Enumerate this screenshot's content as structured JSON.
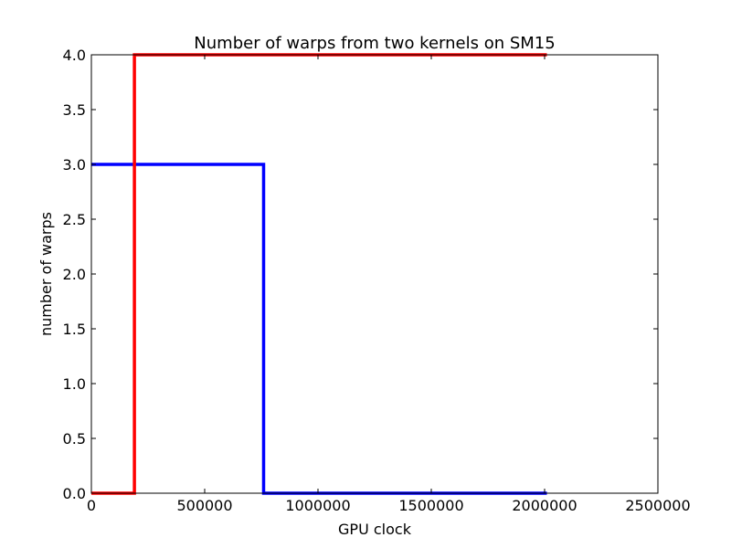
{
  "chart_data": {
    "type": "line",
    "title": "Number of warps from two kernels on SM15",
    "xlabel": "GPU clock",
    "ylabel": "number of warps",
    "xlim": [
      0,
      2500000
    ],
    "ylim": [
      0.0,
      4.0
    ],
    "grid": false,
    "x_ticks": [
      "0",
      "500000",
      "1000000",
      "1500000",
      "2000000",
      "2500000"
    ],
    "x_tick_values": [
      0,
      500000,
      1000000,
      1500000,
      2000000,
      2500000
    ],
    "y_ticks": [
      "0.0",
      "0.5",
      "1.0",
      "1.5",
      "2.0",
      "2.5",
      "3.0",
      "3.5",
      "4.0"
    ],
    "y_tick_values": [
      0.0,
      0.5,
      1.0,
      1.5,
      2.0,
      2.5,
      3.0,
      3.5,
      4.0
    ],
    "series": [
      {
        "color": "#0000ff",
        "points": [
          [
            0,
            3
          ],
          [
            760000,
            3
          ],
          [
            760000,
            0
          ],
          [
            2010000,
            0
          ]
        ]
      },
      {
        "color": "#ff0000",
        "points": [
          [
            0,
            0
          ],
          [
            190000,
            0
          ],
          [
            190000,
            4
          ],
          [
            2010000,
            4
          ]
        ]
      }
    ]
  }
}
